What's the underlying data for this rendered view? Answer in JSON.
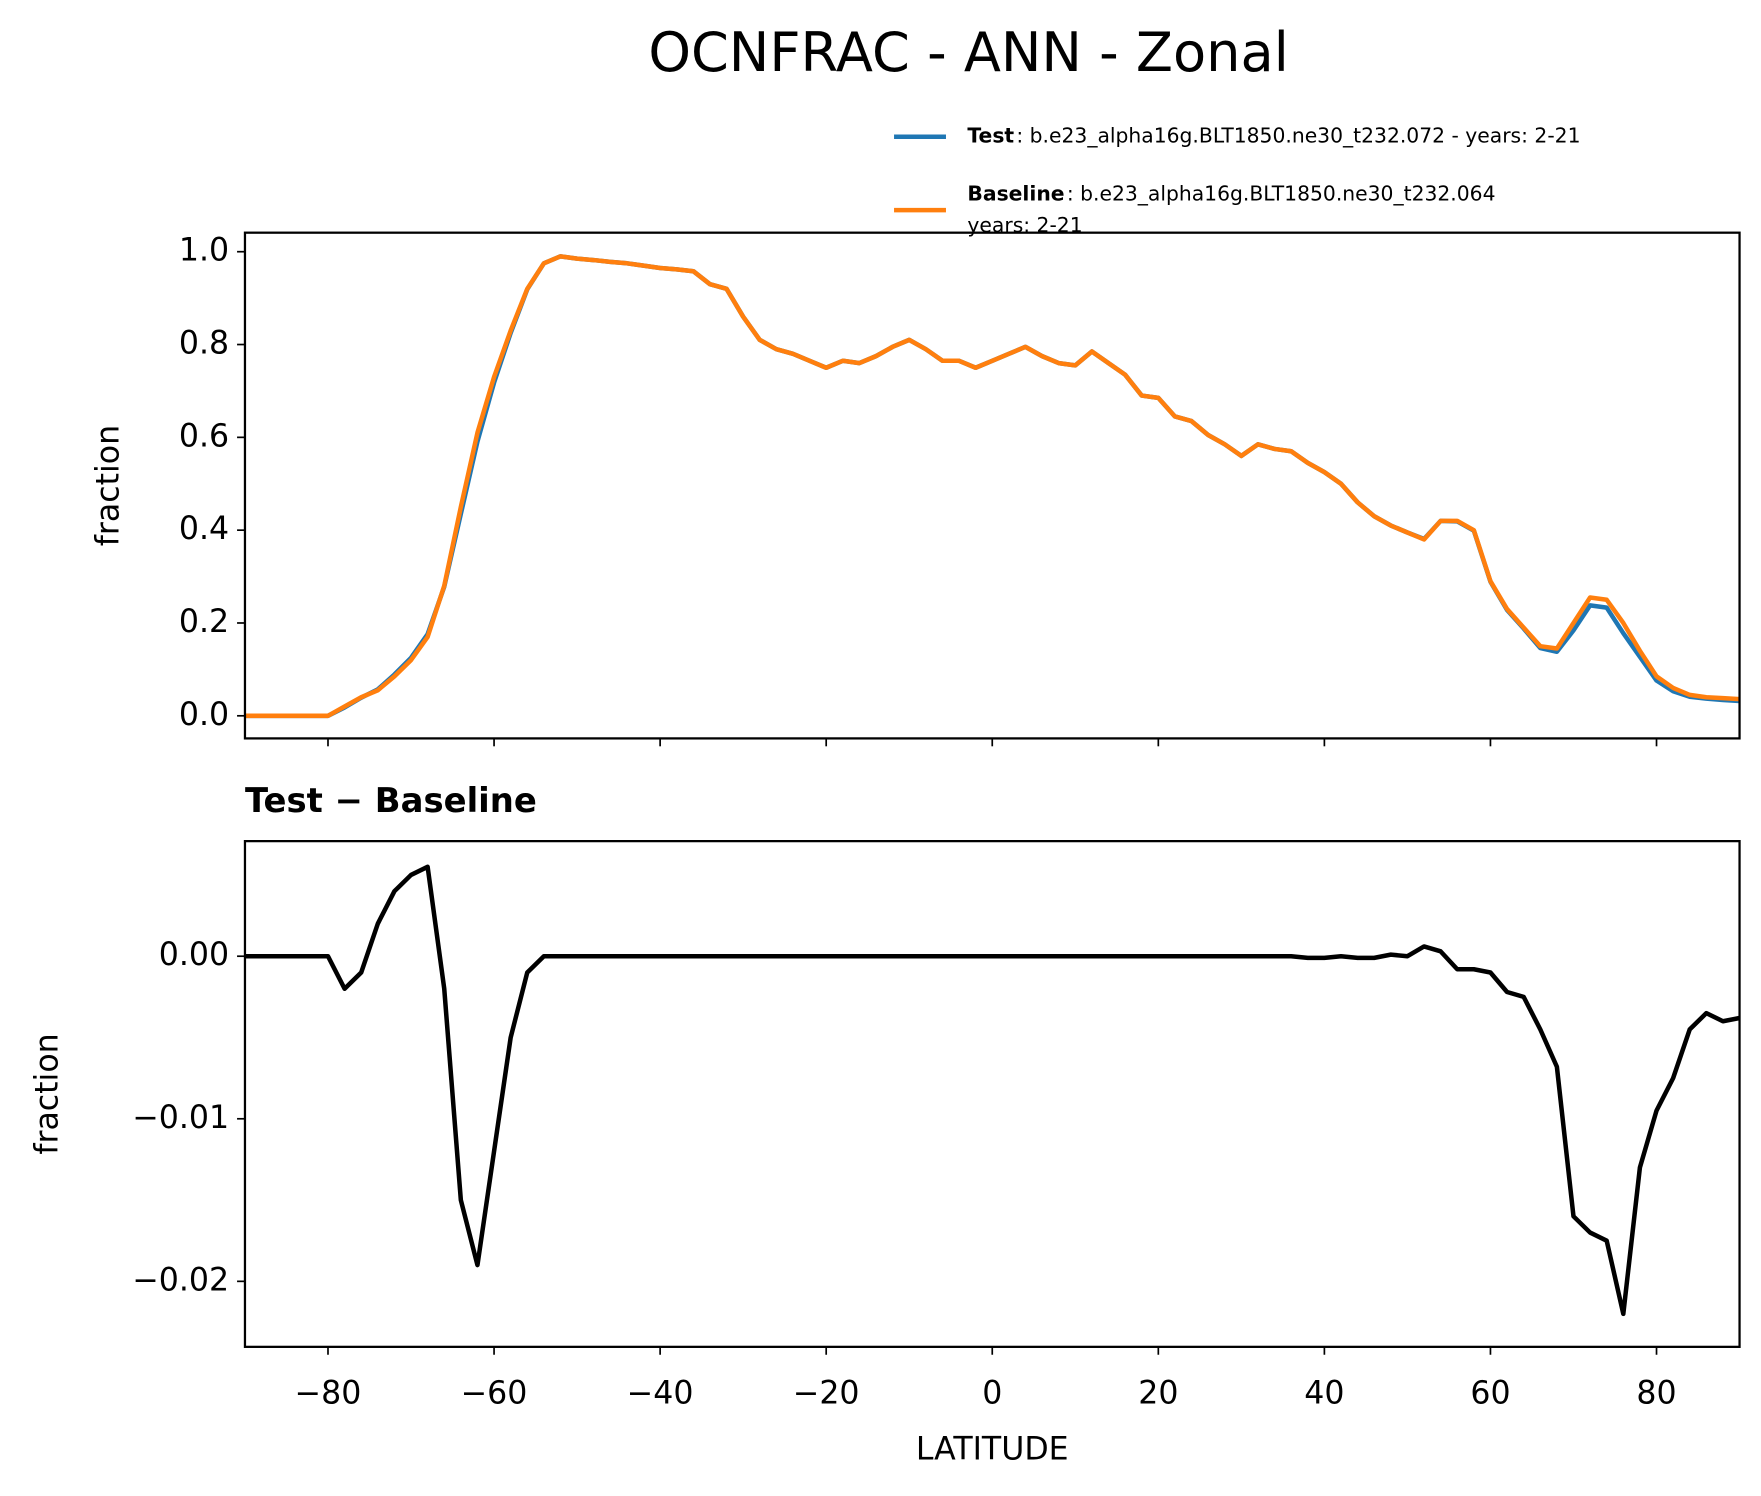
{
  "chart_data": [
    {
      "type": "line",
      "title": "OCNFRAC - ANN - Zonal",
      "ylabel": "fraction",
      "x": [
        -90,
        -88,
        -86,
        -84,
        -82,
        -80,
        -78,
        -76,
        -74,
        -72,
        -70,
        -68,
        -66,
        -64,
        -62,
        -60,
        -58,
        -56,
        -54,
        -52,
        -50,
        -48,
        -46,
        -44,
        -42,
        -40,
        -38,
        -36,
        -34,
        -32,
        -30,
        -28,
        -26,
        -24,
        -22,
        -20,
        -18,
        -16,
        -14,
        -12,
        -10,
        -8,
        -6,
        -4,
        -2,
        0,
        2,
        4,
        6,
        8,
        10,
        12,
        14,
        16,
        18,
        20,
        22,
        24,
        26,
        28,
        30,
        32,
        34,
        36,
        38,
        40,
        42,
        44,
        46,
        48,
        50,
        52,
        54,
        56,
        58,
        60,
        62,
        64,
        66,
        68,
        70,
        72,
        74,
        76,
        78,
        80,
        82,
        84,
        86,
        88,
        90
      ],
      "series": [
        {
          "name": "Test",
          "description": [
            ": b.e23_alpha16g.BLT1850.ne30_t232.072 - years: 2-21"
          ],
          "color": "#1f77b4",
          "values": [
            0,
            0,
            0,
            0,
            0,
            0,
            0.018,
            0.039,
            0.057,
            0.089,
            0.125,
            0.176,
            0.278,
            0.435,
            0.591,
            0.718,
            0.825,
            0.919,
            0.975,
            0.99,
            0.985,
            0.982,
            0.978,
            0.975,
            0.97,
            0.965,
            0.962,
            0.958,
            0.93,
            0.92,
            0.86,
            0.81,
            0.79,
            0.78,
            0.765,
            0.75,
            0.765,
            0.76,
            0.775,
            0.795,
            0.81,
            0.79,
            0.765,
            0.765,
            0.75,
            0.765,
            0.78,
            0.795,
            0.775,
            0.76,
            0.755,
            0.785,
            0.76,
            0.735,
            0.69,
            0.685,
            0.645,
            0.635,
            0.605,
            0.585,
            0.56,
            0.585,
            0.575,
            0.57,
            0.545,
            0.525,
            0.5,
            0.46,
            0.43,
            0.41,
            0.395,
            0.381,
            0.42,
            0.419,
            0.399,
            0.289,
            0.228,
            0.188,
            0.146,
            0.138,
            0.184,
            0.238,
            0.233,
            0.178,
            0.127,
            0.076,
            0.053,
            0.041,
            0.037,
            0.034,
            0.032
          ]
        },
        {
          "name": "Baseline",
          "description": [
            ": b.e23_alpha16g.BLT1850.ne30_t232.064",
            "years: 2-21"
          ],
          "color": "#ff7f0e",
          "values": [
            0,
            0,
            0,
            0,
            0,
            0,
            0.02,
            0.04,
            0.055,
            0.085,
            0.12,
            0.17,
            0.28,
            0.45,
            0.61,
            0.73,
            0.83,
            0.92,
            0.975,
            0.99,
            0.985,
            0.982,
            0.978,
            0.975,
            0.97,
            0.965,
            0.962,
            0.958,
            0.93,
            0.92,
            0.86,
            0.81,
            0.79,
            0.78,
            0.765,
            0.75,
            0.765,
            0.76,
            0.775,
            0.795,
            0.81,
            0.79,
            0.765,
            0.765,
            0.75,
            0.765,
            0.78,
            0.795,
            0.775,
            0.76,
            0.755,
            0.785,
            0.76,
            0.735,
            0.69,
            0.685,
            0.645,
            0.635,
            0.605,
            0.585,
            0.56,
            0.585,
            0.575,
            0.57,
            0.545,
            0.525,
            0.5,
            0.46,
            0.43,
            0.41,
            0.395,
            0.38,
            0.42,
            0.42,
            0.4,
            0.29,
            0.23,
            0.19,
            0.15,
            0.145,
            0.2,
            0.255,
            0.25,
            0.2,
            0.14,
            0.085,
            0.06,
            0.045,
            0.04,
            0.038,
            0.036
          ]
        }
      ],
      "xlim": [
        -90,
        90
      ],
      "xticks": [
        -80,
        -60,
        -40,
        -20,
        0,
        20,
        40,
        60,
        80
      ],
      "show_xtick_labels": false,
      "ylim": [
        -0.0487,
        1.041
      ],
      "yticks": [
        {
          "value": 0,
          "label": "0.0"
        },
        {
          "value": 0.2,
          "label": "0.2"
        },
        {
          "value": 0.4,
          "label": "0.4"
        },
        {
          "value": 0.6,
          "label": "0.6"
        },
        {
          "value": 0.8,
          "label": "0.8"
        },
        {
          "value": 1,
          "label": "1.0"
        }
      ]
    },
    {
      "type": "line",
      "title": "Test − Baseline",
      "ylabel": "fraction",
      "xlabel": "LATITUDE",
      "x": [
        -90,
        -88,
        -86,
        -84,
        -82,
        -80,
        -78,
        -76,
        -74,
        -72,
        -70,
        -68,
        -66,
        -64,
        -62,
        -60,
        -58,
        -56,
        -54,
        -52,
        -50,
        -48,
        -46,
        -44,
        -42,
        -40,
        -38,
        -36,
        -34,
        -32,
        -30,
        -28,
        -26,
        -24,
        -22,
        -20,
        -18,
        -16,
        -14,
        -12,
        -10,
        -8,
        -6,
        -4,
        -2,
        0,
        2,
        4,
        6,
        8,
        10,
        12,
        14,
        16,
        18,
        20,
        22,
        24,
        26,
        28,
        30,
        32,
        34,
        36,
        38,
        40,
        42,
        44,
        46,
        48,
        50,
        52,
        54,
        56,
        58,
        60,
        62,
        64,
        66,
        68,
        70,
        72,
        74,
        76,
        78,
        80,
        82,
        84,
        86,
        88,
        90
      ],
      "series": [
        {
          "color": "#000000",
          "values": [
            0,
            0,
            0,
            0,
            0,
            0,
            -0.002,
            -0.001,
            0.002,
            0.004,
            0.005,
            0.0055,
            -0.002,
            -0.015,
            -0.019,
            -0.012,
            -0.005,
            -0.001,
            0,
            0,
            0,
            0,
            0,
            0,
            0,
            0,
            0,
            0,
            0,
            0,
            0,
            0,
            0,
            0,
            0,
            0,
            0,
            0,
            0,
            0,
            0,
            0,
            0,
            0,
            0,
            0,
            0,
            0,
            0,
            0,
            0,
            0,
            0,
            0,
            0,
            0,
            0,
            0,
            0,
            0,
            0,
            0,
            0,
            0,
            -0.0001,
            -0.0001,
            0,
            -0.0001,
            -0.0001,
            0.0001,
            0,
            0.0006,
            0.0003,
            -0.0008,
            -0.0008,
            -0.001,
            -0.0022,
            -0.0025,
            -0.0045,
            -0.0068,
            -0.016,
            -0.017,
            -0.0175,
            -0.022,
            -0.013,
            -0.0095,
            -0.0075,
            -0.0045,
            -0.0035,
            -0.004,
            -0.0038
          ]
        }
      ],
      "xlim": [
        -90,
        90
      ],
      "xticks": [
        {
          "value": -80,
          "label": "−80"
        },
        {
          "value": -60,
          "label": "−60"
        },
        {
          "value": -40,
          "label": "−40"
        },
        {
          "value": -20,
          "label": "−20"
        },
        0,
        20,
        40,
        60,
        80
      ],
      "show_xtick_labels": true,
      "ylim": [
        -0.02403,
        0.00708
      ],
      "yticks": [
        {
          "value": -0.02,
          "label": "−0.02"
        },
        {
          "value": -0.01,
          "label": "−0.01"
        },
        {
          "value": 0,
          "label": "0.00"
        }
      ]
    }
  ]
}
